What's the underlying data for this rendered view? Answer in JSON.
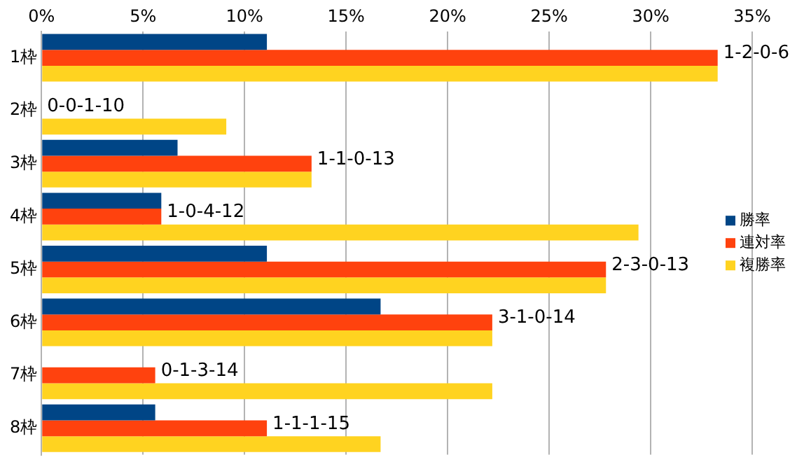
{
  "chart_data": {
    "type": "bar",
    "orientation": "horizontal",
    "categories": [
      "1枠",
      "2枠",
      "3枠",
      "4枠",
      "5枠",
      "6枠",
      "7枠",
      "8枠"
    ],
    "series": [
      {
        "name": "勝率",
        "color": "#004586",
        "values": [
          11.1,
          0,
          6.7,
          5.9,
          11.1,
          16.7,
          0,
          5.6
        ]
      },
      {
        "name": "連対率",
        "color": "#ff420e",
        "values": [
          33.3,
          0,
          13.3,
          5.9,
          27.8,
          22.2,
          5.6,
          11.1
        ]
      },
      {
        "name": "複勝率",
        "color": "#ffd320",
        "values": [
          33.3,
          9.1,
          13.3,
          29.4,
          27.8,
          22.2,
          22.2,
          16.7
        ]
      }
    ],
    "xlim": [
      0,
      35
    ],
    "xticks": [
      {
        "value": 0,
        "label": "0%"
      },
      {
        "value": 5,
        "label": "5%"
      },
      {
        "value": 10,
        "label": "10%"
      },
      {
        "value": 15,
        "label": "15%"
      },
      {
        "value": 20,
        "label": "20%"
      },
      {
        "value": 25,
        "label": "25%"
      },
      {
        "value": 30,
        "label": "30%"
      },
      {
        "value": 35,
        "label": "35%"
      }
    ],
    "grid": "x",
    "legend": "right",
    "annotations": [
      {
        "text": "1-2-0-6",
        "x": 33.3,
        "y": "1枠"
      },
      {
        "text": "0-0-1-10",
        "x": 0,
        "y": "2枠"
      },
      {
        "text": "1-1-0-13",
        "x": 13.3,
        "y": "3枠"
      },
      {
        "text": "1-0-4-12",
        "x": 5.9,
        "y": "4枠"
      },
      {
        "text": "2-3-0-13",
        "x": 27.8,
        "y": "5枠"
      },
      {
        "text": "3-1-0-14",
        "x": 22.2,
        "y": "6枠"
      },
      {
        "text": "0-1-3-14",
        "x": 5.6,
        "y": "7枠"
      },
      {
        "text": "1-1-1-15",
        "x": 11.1,
        "y": "8枠"
      }
    ]
  }
}
